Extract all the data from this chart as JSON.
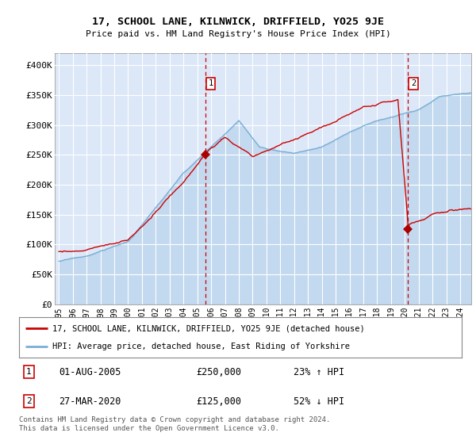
{
  "title": "17, SCHOOL LANE, KILNWICK, DRIFFIELD, YO25 9JE",
  "subtitle": "Price paid vs. HM Land Registry's House Price Index (HPI)",
  "ylim": [
    0,
    420000
  ],
  "xlim_start": 1994.7,
  "xlim_end": 2024.8,
  "yticks": [
    0,
    50000,
    100000,
    150000,
    200000,
    250000,
    300000,
    350000,
    400000
  ],
  "ytick_labels": [
    "£0",
    "£50K",
    "£100K",
    "£150K",
    "£200K",
    "£250K",
    "£300K",
    "£350K",
    "£400K"
  ],
  "xticks": [
    1995,
    1996,
    1997,
    1998,
    1999,
    2000,
    2001,
    2002,
    2003,
    2004,
    2005,
    2006,
    2007,
    2008,
    2009,
    2010,
    2011,
    2012,
    2013,
    2014,
    2015,
    2016,
    2017,
    2018,
    2019,
    2020,
    2021,
    2022,
    2023,
    2024
  ],
  "plot_bg_color": "#dce8f8",
  "red_line_color": "#cc0000",
  "blue_line_color": "#7aaed6",
  "point1_x": 2005.583,
  "point1_y": 250000,
  "point2_x": 2020.24,
  "point2_y": 125000,
  "legend_line1": "17, SCHOOL LANE, KILNWICK, DRIFFIELD, YO25 9JE (detached house)",
  "legend_line2": "HPI: Average price, detached house, East Riding of Yorkshire",
  "annotation1_num": "1",
  "annotation1_date": "01-AUG-2005",
  "annotation1_price": "£250,000",
  "annotation1_hpi": "23% ↑ HPI",
  "annotation2_num": "2",
  "annotation2_date": "27-MAR-2020",
  "annotation2_price": "£125,000",
  "annotation2_hpi": "52% ↓ HPI",
  "footer": "Contains HM Land Registry data © Crown copyright and database right 2024.\nThis data is licensed under the Open Government Licence v3.0."
}
